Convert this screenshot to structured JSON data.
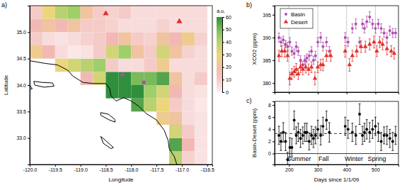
{
  "chart_data": [
    {
      "type": "heatmap",
      "title": "a)",
      "x_label": "Longitude",
      "y_label": "Latitude",
      "xlim": [
        -120,
        -116.4
      ],
      "ylim": [
        32.5,
        35.5
      ],
      "xticks": [
        {
          "value": -120,
          "label": "-120.0"
        },
        -119.5,
        {
          "value": -119,
          "label": "-119.0"
        },
        -118.5,
        {
          "value": -118,
          "label": "-118.0"
        },
        -117.5,
        {
          "value": -117,
          "label": "-117.0"
        },
        -116.5
      ],
      "yticks": [
        {
          "value": 33,
          "label": "33.0"
        },
        33.5,
        {
          "value": 34,
          "label": "34.0"
        },
        34.5,
        {
          "value": 35,
          "label": "35.0"
        }
      ],
      "lon": [
        -119.875,
        -119.625,
        -119.375,
        -119.125,
        -118.875,
        -118.625,
        -118.375,
        -118.125,
        -117.875,
        -117.625,
        -117.375,
        -117.125,
        -116.875,
        -116.625
      ],
      "lat": [
        32.625,
        32.875,
        33.125,
        33.375,
        33.625,
        33.875,
        34.125,
        34.375,
        34.625,
        34.875,
        35.125,
        35.375
      ],
      "values": [
        [
          null,
          null,
          null,
          null,
          null,
          null,
          null,
          null,
          null,
          null,
          null,
          40,
          8,
          3
        ],
        [
          null,
          null,
          null,
          null,
          null,
          null,
          null,
          null,
          null,
          null,
          null,
          55,
          15,
          3
        ],
        [
          null,
          null,
          null,
          null,
          null,
          null,
          null,
          null,
          null,
          null,
          null,
          35,
          10,
          3
        ],
        [
          null,
          null,
          null,
          null,
          null,
          null,
          null,
          null,
          null,
          null,
          25,
          20,
          5,
          3
        ],
        [
          null,
          null,
          null,
          null,
          null,
          null,
          null,
          null,
          55,
          40,
          30,
          10,
          5,
          2
        ],
        [
          null,
          null,
          null,
          null,
          null,
          null,
          60,
          60,
          60,
          45,
          35,
          15,
          5,
          3
        ],
        [
          null,
          null,
          null,
          null,
          15,
          35,
          60,
          60,
          50,
          50,
          55,
          20,
          5,
          10
        ],
        [
          null,
          null,
          30,
          35,
          40,
          45,
          10,
          5,
          5,
          10,
          25,
          5,
          5,
          5
        ],
        [
          25,
          15,
          5,
          2,
          3,
          10,
          35,
          45,
          20,
          10,
          35,
          20,
          8,
          5
        ],
        [
          10,
          5,
          3,
          5,
          8,
          10,
          15,
          20,
          10,
          8,
          20,
          15,
          25,
          8
        ],
        [
          15,
          20,
          15,
          20,
          10,
          10,
          8,
          5,
          5,
          5,
          8,
          5,
          5,
          5
        ],
        [
          10,
          30,
          40,
          45,
          20,
          10,
          8,
          10,
          5,
          5,
          5,
          5,
          5,
          5
        ]
      ],
      "colorbar": {
        "label": "a.u.",
        "lim": [
          0,
          60
        ],
        "ticks": [
          0,
          10,
          20,
          30,
          40,
          50,
          60
        ]
      },
      "coastline": [
        [
          [
            -120.0,
            34.46
          ],
          [
            -119.7,
            34.41
          ],
          [
            -119.45,
            34.38
          ],
          [
            -119.25,
            34.28
          ],
          [
            -119.15,
            34.17
          ],
          [
            -118.95,
            34.05
          ],
          [
            -118.75,
            34.03
          ],
          [
            -118.5,
            34.03
          ],
          [
            -118.42,
            33.93
          ],
          [
            -118.4,
            33.8
          ],
          [
            -118.3,
            33.7
          ],
          [
            -118.15,
            33.76
          ],
          [
            -118.0,
            33.7
          ],
          [
            -117.85,
            33.6
          ],
          [
            -117.7,
            33.46
          ],
          [
            -117.5,
            33.34
          ],
          [
            -117.35,
            33.15
          ],
          [
            -117.27,
            32.95
          ],
          [
            -117.25,
            32.8
          ],
          [
            -117.15,
            32.65
          ],
          [
            -117.1,
            32.5
          ]
        ],
        [
          [
            -119.92,
            34.07
          ],
          [
            -119.75,
            34.05
          ],
          [
            -119.55,
            34.04
          ],
          [
            -119.52,
            33.98
          ],
          [
            -119.72,
            33.96
          ],
          [
            -119.9,
            34.0
          ],
          [
            -119.92,
            34.07
          ]
        ],
        [
          [
            -120.2,
            34.0
          ],
          [
            -120.0,
            34.0
          ],
          [
            -119.95,
            33.93
          ],
          [
            -120.1,
            33.9
          ],
          [
            -120.2,
            34.0
          ]
        ],
        [
          [
            -118.6,
            33.48
          ],
          [
            -118.45,
            33.45
          ],
          [
            -118.32,
            33.35
          ],
          [
            -118.32,
            33.3
          ],
          [
            -118.45,
            33.35
          ],
          [
            -118.6,
            33.43
          ],
          [
            -118.6,
            33.48
          ]
        ],
        [
          [
            -118.6,
            33.03
          ],
          [
            -118.5,
            32.95
          ],
          [
            -118.35,
            32.82
          ],
          [
            -118.4,
            32.8
          ],
          [
            -118.55,
            32.9
          ],
          [
            -118.6,
            33.03
          ]
        ]
      ],
      "series": [
        {
          "color": "#b04ab0",
          "marker": "circle",
          "lon": [
            -118.17,
            -117.75
          ],
          "lat": [
            34.2,
            34.05
          ]
        },
        {
          "color": "#e0302a",
          "marker": "triangle",
          "lon": [
            -118.5,
            -117.05
          ],
          "lat": [
            35.35,
            35.2
          ]
        }
      ]
    },
    {
      "type": "scatter",
      "title": "b)",
      "y_label": "XCO2 (ppm)",
      "xlim": [
        150,
        580
      ],
      "ylim": [
        378,
        397
      ],
      "xticks": [
        200,
        300,
        400,
        500
      ],
      "yticks": [
        380,
        385,
        390,
        395
      ],
      "tick_labels": "y",
      "grid": true,
      "legend": "upper left",
      "series": [
        {
          "name": "Basin",
          "color": "#b04ab0",
          "marker": "circle",
          "x": [
            165,
            172,
            180,
            188,
            195,
            203,
            210,
            218,
            225,
            232,
            240,
            248,
            255,
            262,
            270,
            278,
            285,
            292,
            300,
            310,
            318,
            330,
            340,
            395,
            405,
            420,
            432,
            445,
            455,
            462,
            470,
            480,
            490,
            500,
            510,
            520,
            530,
            540,
            550,
            560,
            570
          ],
          "values": [
            390,
            389,
            389.5,
            388.5,
            388,
            389,
            387,
            386.5,
            388,
            387,
            385,
            384,
            385,
            385.5,
            386,
            387,
            385,
            386,
            389,
            390,
            388,
            389,
            387,
            390,
            389,
            392,
            393,
            389,
            393,
            392,
            393.5,
            394.5,
            393,
            392,
            393,
            392,
            391,
            390,
            391.5,
            391,
            391
          ],
          "errors": [
            1,
            1,
            0.8,
            0.8,
            1,
            1,
            0.9,
            1,
            1,
            0.9,
            1,
            0.8,
            1,
            0.9,
            1,
            1,
            0.9,
            1,
            1,
            1.1,
            1,
            1,
            1,
            1.1,
            1,
            1,
            1.1,
            1,
            1,
            1,
            1.2,
            1.2,
            1,
            1,
            1,
            1,
            0.9,
            1,
            1,
            1,
            1
          ]
        },
        {
          "name": "Desert",
          "color": "#e0302a",
          "marker": "triangle",
          "x": [
            165,
            175,
            185,
            195,
            203,
            210,
            218,
            225,
            232,
            240,
            248,
            258,
            268,
            278,
            290,
            300,
            310,
            318,
            330,
            345,
            395,
            410,
            420,
            435,
            450,
            465,
            480,
            495,
            505,
            515,
            525,
            540,
            555,
            565
          ],
          "values": [
            386,
            387,
            387,
            386,
            381,
            382,
            382.5,
            383,
            382,
            383.5,
            383,
            383.5,
            383,
            383.5,
            381,
            383.5,
            384,
            384,
            386,
            386,
            387,
            384,
            386,
            387,
            388,
            388,
            388.5,
            389,
            387,
            389,
            388.5,
            387.5,
            387,
            386.5
          ],
          "errors": [
            1.2,
            1.2,
            1.3,
            1.2,
            1.4,
            1.2,
            1.2,
            1.3,
            1.2,
            1.2,
            1.2,
            1.3,
            1.2,
            1.2,
            1.4,
            1.2,
            1.2,
            1.3,
            1.2,
            1.2,
            1.3,
            1.4,
            1.2,
            1.2,
            1.3,
            1.2,
            1.2,
            1.3,
            1.2,
            1.2,
            1.2,
            1.3,
            1.2,
            1.2
          ]
        }
      ]
    },
    {
      "type": "scatter",
      "title": "c)",
      "x_label": "Days since 1/1/09",
      "y_label": "Basin-Desert (ppm)",
      "xlim": [
        150,
        580
      ],
      "ylim": [
        -1.8,
        8.6
      ],
      "xticks": [
        200,
        300,
        400,
        500
      ],
      "yticks": [
        0,
        2,
        4,
        6,
        8
      ],
      "grid": true,
      "mean": 3.3,
      "baseline": 0,
      "annotations": [
        {
          "text": "Summer",
          "x": 235,
          "y": -1.2
        },
        {
          "text": "Fall",
          "x": 320,
          "y": -1.2
        },
        {
          "text": "Winter",
          "x": 425,
          "y": -1.2
        },
        {
          "text": "Spring",
          "x": 505,
          "y": -1.2
        }
      ],
      "series": [
        {
          "color": "#000000",
          "marker": "circle",
          "x": [
            165,
            172,
            180,
            188,
            195,
            203,
            210,
            218,
            225,
            232,
            240,
            248,
            255,
            262,
            270,
            278,
            285,
            292,
            300,
            310,
            318,
            330,
            340,
            395,
            405,
            420,
            432,
            445,
            455,
            462,
            470,
            480,
            490,
            500,
            510,
            520,
            530,
            540,
            550,
            560,
            570
          ],
          "values": [
            3,
            2,
            3.5,
            2,
            -1,
            1,
            1,
            5.5,
            3,
            3.5,
            2.5,
            3,
            3.5,
            3.5,
            2,
            3,
            2.5,
            3,
            4,
            3,
            4.5,
            5.5,
            3.5,
            4.5,
            4,
            3.5,
            3,
            6.5,
            3,
            3.5,
            4,
            3.5,
            4,
            4.5,
            3.5,
            2,
            3,
            3,
            2.5,
            2,
            3
          ],
          "errors": [
            1.5,
            1.5,
            1.6,
            1.5,
            1.2,
            1.6,
            1.5,
            1.5,
            1.4,
            1.5,
            1.5,
            1.4,
            1.5,
            1.5,
            1.4,
            1.5,
            1.5,
            1.4,
            1.5,
            1.6,
            1.5,
            1.5,
            1.6,
            1.5,
            1.5,
            1.5,
            1.5,
            1.7,
            1.5,
            1.5,
            1.6,
            1.6,
            1.5,
            1.5,
            1.5,
            1.5,
            1.4,
            1.5,
            1.5,
            1.5,
            1.5
          ]
        }
      ]
    }
  ]
}
